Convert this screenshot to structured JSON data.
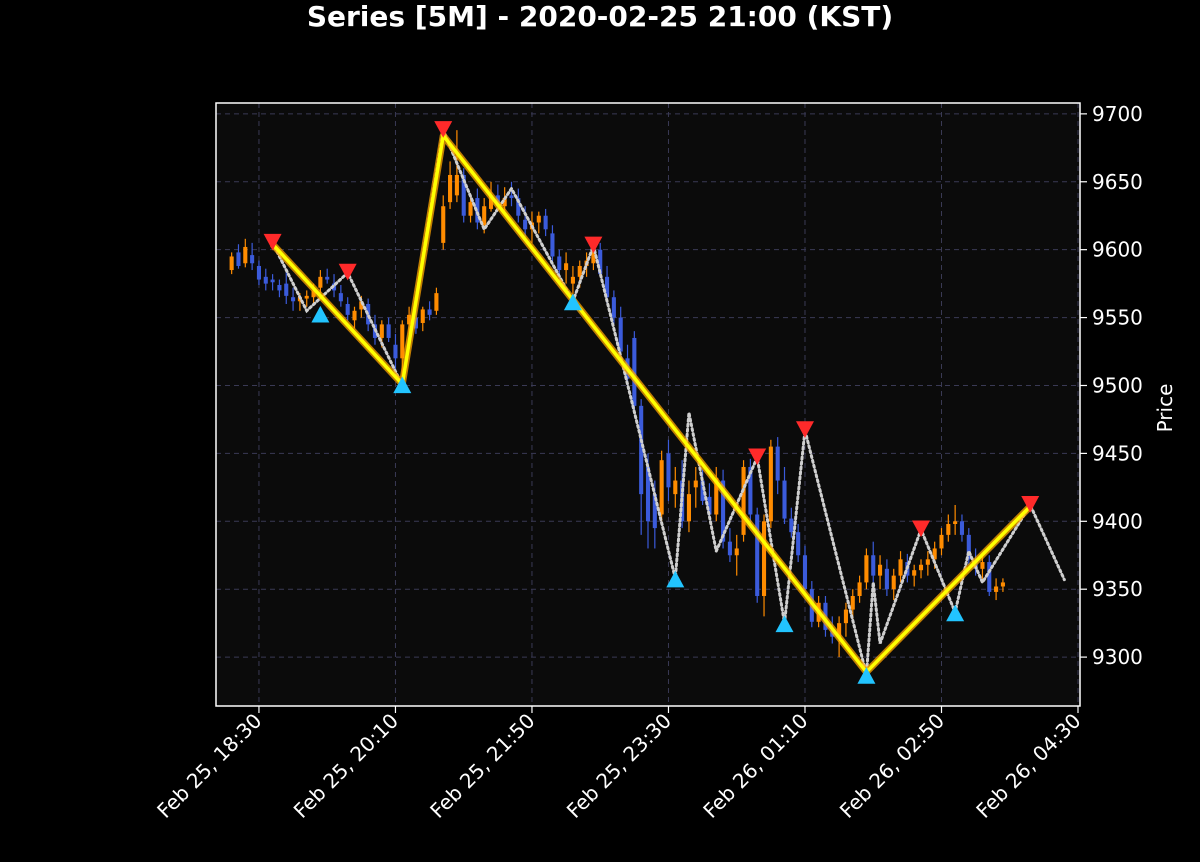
{
  "chart_data": {
    "type": "candlestick",
    "title": "Series [5M] - 2020-02-25 21:00 (KST)",
    "xlabel": "",
    "ylabel": "Price",
    "ylim": [
      9264,
      9708
    ],
    "yticks": [
      9300,
      9350,
      9400,
      9450,
      9500,
      9550,
      9600,
      9650,
      9700
    ],
    "x_time_range": [
      "Feb 25, 18:00",
      "Feb 26, 04:30"
    ],
    "bar_interval_minutes": 5,
    "xticks": [
      {
        "time": "Feb 25, 18:30",
        "label": "Feb 25, 18:30"
      },
      {
        "time": "Feb 25, 20:10",
        "label": "Feb 25, 20:10"
      },
      {
        "time": "Feb 25, 21:50",
        "label": "Feb 25, 21:50"
      },
      {
        "time": "Feb 25, 23:30",
        "label": "Feb 25, 23:30"
      },
      {
        "time": "Feb 26, 01:10",
        "label": "Feb 26, 01:10"
      },
      {
        "time": "Feb 26, 02:50",
        "label": "Feb 26, 02:50"
      },
      {
        "time": "Feb 26, 04:30",
        "label": "Feb 26, 04:30"
      }
    ],
    "grid": true,
    "colors": {
      "background": "#000000",
      "plot_background": "#0b0b0b",
      "grid": "#3a3a55",
      "up_candle": "#ff8c00",
      "down_candle": "#3b5bdb",
      "trend_line": "#ffff00",
      "trend_glow": "#ffa500",
      "zigzag": "#cfcfcf",
      "peak_marker": "#ff2a2a",
      "trough_marker": "#22c4ff",
      "text": "#ffffff"
    },
    "candles_ohlc": [
      [
        9585,
        9598,
        9582,
        9595
      ],
      [
        9598,
        9604,
        9586,
        9588
      ],
      [
        9590,
        9608,
        9587,
        9602
      ],
      [
        9596,
        9605,
        9585,
        9590
      ],
      [
        9588,
        9592,
        9574,
        9578
      ],
      [
        9580,
        9586,
        9570,
        9575
      ],
      [
        9578,
        9582,
        9570,
        9576
      ],
      [
        9574,
        9578,
        9565,
        9570
      ],
      [
        9575,
        9584,
        9560,
        9566
      ],
      [
        9565,
        9572,
        9555,
        9562
      ],
      [
        9562,
        9568,
        9555,
        9565
      ],
      [
        9564,
        9570,
        9558,
        9566
      ],
      [
        9565,
        9575,
        9560,
        9570
      ],
      [
        9572,
        9585,
        9568,
        9580
      ],
      [
        9580,
        9586,
        9575,
        9578
      ],
      [
        9575,
        9582,
        9565,
        9570
      ],
      [
        9568,
        9574,
        9558,
        9562
      ],
      [
        9560,
        9565,
        9548,
        9552
      ],
      [
        9548,
        9558,
        9542,
        9555
      ],
      [
        9556,
        9566,
        9550,
        9562
      ],
      [
        9560,
        9564,
        9540,
        9545
      ],
      [
        9545,
        9552,
        9530,
        9535
      ],
      [
        9535,
        9548,
        9528,
        9545
      ],
      [
        9545,
        9550,
        9532,
        9535
      ],
      [
        9530,
        9538,
        9510,
        9520
      ],
      [
        9520,
        9548,
        9505,
        9545
      ],
      [
        9545,
        9558,
        9538,
        9552
      ],
      [
        9550,
        9556,
        9538,
        9542
      ],
      [
        9546,
        9558,
        9540,
        9556
      ],
      [
        9556,
        9562,
        9548,
        9552
      ],
      [
        9555,
        9572,
        9552,
        9568
      ],
      [
        9605,
        9640,
        9600,
        9632
      ],
      [
        9635,
        9665,
        9630,
        9655
      ],
      [
        9640,
        9688,
        9635,
        9655
      ],
      [
        9655,
        9660,
        9620,
        9625
      ],
      [
        9625,
        9640,
        9620,
        9635
      ],
      [
        9638,
        9645,
        9615,
        9620
      ],
      [
        9618,
        9638,
        9612,
        9632
      ],
      [
        9630,
        9650,
        9628,
        9640
      ],
      [
        9640,
        9648,
        9630,
        9632
      ],
      [
        9632,
        9646,
        9625,
        9638
      ],
      [
        9640,
        9650,
        9632,
        9638
      ],
      [
        9638,
        9645,
        9620,
        9625
      ],
      [
        9622,
        9632,
        9608,
        9615
      ],
      [
        9615,
        9628,
        9605,
        9620
      ],
      [
        9620,
        9628,
        9612,
        9625
      ],
      [
        9625,
        9630,
        9610,
        9615
      ],
      [
        9612,
        9618,
        9590,
        9595
      ],
      [
        9595,
        9600,
        9580,
        9585
      ],
      [
        9585,
        9598,
        9575,
        9590
      ],
      [
        9575,
        9588,
        9565,
        9580
      ],
      [
        9580,
        9592,
        9572,
        9588
      ],
      [
        9588,
        9598,
        9580,
        9592
      ],
      [
        9590,
        9602,
        9585,
        9600
      ],
      [
        9600,
        9605,
        9580,
        9582
      ],
      [
        9580,
        9588,
        9560,
        9565
      ],
      [
        9565,
        9570,
        9545,
        9550
      ],
      [
        9550,
        9558,
        9520,
        9525
      ],
      [
        9520,
        9530,
        9500,
        9505
      ],
      [
        9535,
        9540,
        9480,
        9485
      ],
      [
        9485,
        9490,
        9390,
        9420
      ],
      [
        9440,
        9450,
        9380,
        9400
      ],
      [
        9420,
        9430,
        9380,
        9395
      ],
      [
        9405,
        9452,
        9400,
        9445
      ],
      [
        9450,
        9460,
        9415,
        9425
      ],
      [
        9420,
        9440,
        9410,
        9430
      ],
      [
        9430,
        9445,
        9395,
        9400
      ],
      [
        9400,
        9430,
        9392,
        9420
      ],
      [
        9425,
        9440,
        9410,
        9430
      ],
      [
        9430,
        9438,
        9412,
        9415
      ],
      [
        9418,
        9428,
        9402,
        9405
      ],
      [
        9405,
        9440,
        9400,
        9432
      ],
      [
        9430,
        9438,
        9380,
        9385
      ],
      [
        9385,
        9395,
        9370,
        9375
      ],
      [
        9375,
        9390,
        9360,
        9380
      ],
      [
        9390,
        9445,
        9385,
        9440
      ],
      [
        9440,
        9446,
        9395,
        9405
      ],
      [
        9405,
        9410,
        9340,
        9345
      ],
      [
        9345,
        9405,
        9330,
        9400
      ],
      [
        9400,
        9460,
        9395,
        9455
      ],
      [
        9455,
        9462,
        9420,
        9430
      ],
      [
        9430,
        9440,
        9398,
        9402
      ],
      [
        9402,
        9410,
        9388,
        9392
      ],
      [
        9392,
        9398,
        9370,
        9375
      ],
      [
        9375,
        9382,
        9348,
        9350
      ],
      [
        9350,
        9356,
        9322,
        9326
      ],
      [
        9326,
        9345,
        9322,
        9340
      ],
      [
        9340,
        9345,
        9315,
        9320
      ],
      [
        9320,
        9330,
        9310,
        9315
      ],
      [
        9315,
        9330,
        9300,
        9325
      ],
      [
        9325,
        9340,
        9315,
        9335
      ],
      [
        9335,
        9350,
        9328,
        9345
      ],
      [
        9345,
        9360,
        9340,
        9355
      ],
      [
        9355,
        9380,
        9350,
        9375
      ],
      [
        9375,
        9385,
        9355,
        9360
      ],
      [
        9360,
        9375,
        9350,
        9368
      ],
      [
        9365,
        9372,
        9345,
        9350
      ],
      [
        9350,
        9365,
        9342,
        9360
      ],
      [
        9360,
        9378,
        9355,
        9372
      ],
      [
        9370,
        9376,
        9355,
        9360
      ],
      [
        9360,
        9368,
        9352,
        9364
      ],
      [
        9364,
        9372,
        9358,
        9368
      ],
      [
        9368,
        9378,
        9360,
        9372
      ],
      [
        9372,
        9385,
        9365,
        9380
      ],
      [
        9380,
        9395,
        9375,
        9390
      ],
      [
        9390,
        9405,
        9385,
        9398
      ],
      [
        9398,
        9412,
        9390,
        9400
      ],
      [
        9400,
        9405,
        9385,
        9390
      ],
      [
        9390,
        9395,
        9368,
        9372
      ],
      [
        9372,
        9380,
        9360,
        9365
      ],
      [
        9365,
        9375,
        9355,
        9370
      ],
      [
        9370,
        9375,
        9345,
        9348
      ],
      [
        9348,
        9358,
        9342,
        9352
      ],
      [
        9352,
        9358,
        9348,
        9355
      ]
    ],
    "zigzag_pivots": [
      {
        "time": "Feb 25, 18:40",
        "price": 9605,
        "type": "peak"
      },
      {
        "time": "Feb 25, 19:05",
        "price": 9555,
        "type": "trough"
      },
      {
        "time": "Feb 25, 19:35",
        "price": 9583,
        "type": "peak"
      },
      {
        "time": "Feb 25, 20:15",
        "price": 9500,
        "type": "trough"
      },
      {
        "time": "Feb 25, 20:45",
        "price": 9688,
        "type": "peak"
      },
      {
        "time": "Feb 25, 21:15",
        "price": 9615,
        "type": "trough"
      },
      {
        "time": "Feb 25, 21:35",
        "price": 9645,
        "type": "peak"
      },
      {
        "time": "Feb 25, 22:20",
        "price": 9562,
        "type": "trough"
      },
      {
        "time": "Feb 25, 22:35",
        "price": 9603,
        "type": "peak"
      },
      {
        "time": "Feb 25, 23:35",
        "price": 9358,
        "type": "trough"
      },
      {
        "time": "Feb 25, 23:45",
        "price": 9480,
        "type": "peak"
      },
      {
        "time": "Feb 26, 00:05",
        "price": 9378,
        "type": "trough"
      },
      {
        "time": "Feb 26, 00:35",
        "price": 9447,
        "type": "peak"
      },
      {
        "time": "Feb 26, 00:55",
        "price": 9325,
        "type": "trough"
      },
      {
        "time": "Feb 26, 01:10",
        "price": 9467,
        "type": "peak"
      },
      {
        "time": "Feb 26, 01:55",
        "price": 9287,
        "type": "trough"
      },
      {
        "time": "Feb 26, 02:00",
        "price": 9355,
        "type": "peak"
      },
      {
        "time": "Feb 26, 02:05",
        "price": 9310,
        "type": "trough"
      },
      {
        "time": "Feb 26, 02:35",
        "price": 9394,
        "type": "peak"
      },
      {
        "time": "Feb 26, 03:00",
        "price": 9333,
        "type": "trough"
      },
      {
        "time": "Feb 26, 03:10",
        "price": 9378,
        "type": "peak"
      },
      {
        "time": "Feb 26, 03:20",
        "price": 9355,
        "type": "trough"
      },
      {
        "time": "Feb 26, 03:55",
        "price": 9412,
        "type": "peak"
      },
      {
        "time": "Feb 26, 04:20",
        "price": 9357,
        "type": "trough"
      }
    ],
    "trend_line": [
      {
        "time": "Feb 25, 18:40",
        "price": 9604
      },
      {
        "time": "Feb 25, 20:15",
        "price": 9501
      },
      {
        "time": "Feb 25, 20:45",
        "price": 9684
      },
      {
        "time": "Feb 26, 01:55",
        "price": 9289
      },
      {
        "time": "Feb 26, 03:55",
        "price": 9411
      }
    ],
    "markers": [
      {
        "time": "Feb 25, 18:40",
        "price": 9605,
        "type": "peak"
      },
      {
        "time": "Feb 25, 19:15",
        "price": 9553,
        "type": "trough"
      },
      {
        "time": "Feb 25, 19:35",
        "price": 9583,
        "type": "peak"
      },
      {
        "time": "Feb 25, 20:15",
        "price": 9501,
        "type": "trough"
      },
      {
        "time": "Feb 25, 20:45",
        "price": 9688,
        "type": "peak"
      },
      {
        "time": "Feb 25, 22:20",
        "price": 9562,
        "type": "trough"
      },
      {
        "time": "Feb 25, 22:35",
        "price": 9603,
        "type": "peak"
      },
      {
        "time": "Feb 25, 23:35",
        "price": 9358,
        "type": "trough"
      },
      {
        "time": "Feb 26, 00:35",
        "price": 9447,
        "type": "peak"
      },
      {
        "time": "Feb 26, 00:55",
        "price": 9325,
        "type": "trough"
      },
      {
        "time": "Feb 26, 01:10",
        "price": 9467,
        "type": "peak"
      },
      {
        "time": "Feb 26, 01:55",
        "price": 9287,
        "type": "trough"
      },
      {
        "time": "Feb 26, 02:35",
        "price": 9394,
        "type": "peak"
      },
      {
        "time": "Feb 26, 03:00",
        "price": 9333,
        "type": "trough"
      },
      {
        "time": "Feb 26, 03:55",
        "price": 9412,
        "type": "peak"
      }
    ]
  }
}
